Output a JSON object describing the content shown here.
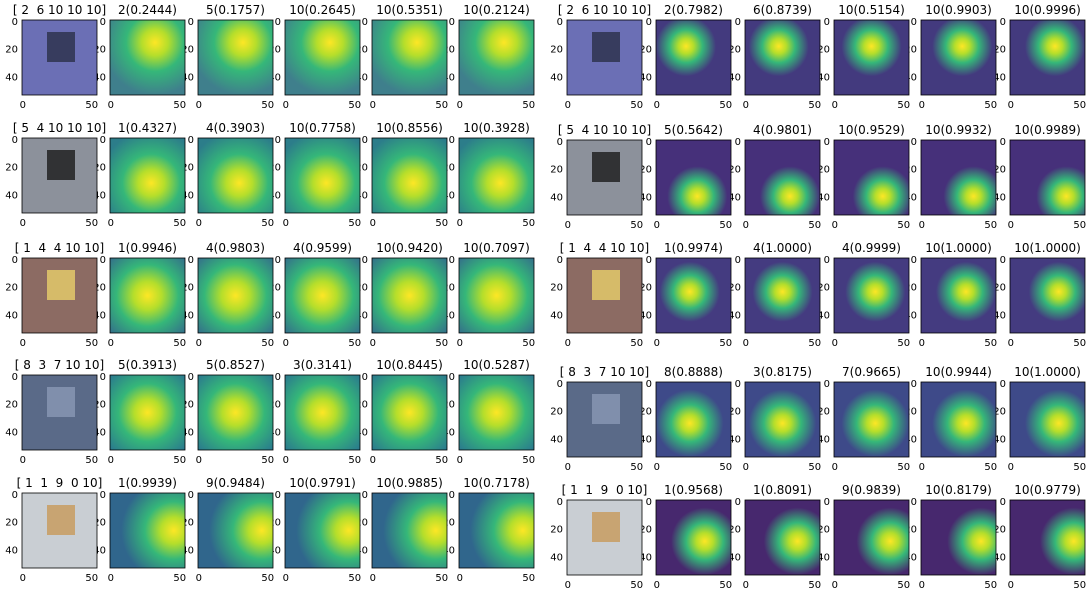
{
  "panels": [
    {
      "rows": [
        {
          "label": "[ 2  6 10 10 10]",
          "titles": [
            "2(0.2444)",
            "5(0.1757)",
            "10(0.2645)",
            "10(0.5351)",
            "10(0.2124)"
          ]
        },
        {
          "label": "[ 5  4 10 10 10]",
          "titles": [
            "1(0.4327)",
            "4(0.3903)",
            "10(0.7758)",
            "10(0.8556)",
            "10(0.3928)"
          ]
        },
        {
          "label": "[ 1  4  4 10 10]",
          "titles": [
            "1(0.9946)",
            "4(0.9803)",
            "4(0.9599)",
            "10(0.9420)",
            "10(0.7097)"
          ]
        },
        {
          "label": "[ 8  3  7 10 10]",
          "titles": [
            "5(0.3913)",
            "5(0.8527)",
            "3(0.3141)",
            "10(0.8445)",
            "10(0.5287)"
          ]
        },
        {
          "label": "[ 1  1  9  0 10]",
          "titles": [
            "1(0.9939)",
            "9(0.9484)",
            "10(0.9791)",
            "10(0.9885)",
            "10(0.7178)"
          ]
        }
      ]
    },
    {
      "rows": [
        {
          "label": "[ 2  6 10 10 10]",
          "titles": [
            "2(0.7982)",
            "6(0.8739)",
            "10(0.5154)",
            "10(0.9903)",
            "10(0.9996)"
          ]
        },
        {
          "label": "[ 5  4 10 10 10]",
          "titles": [
            "5(0.5642)",
            "4(0.9801)",
            "10(0.9529)",
            "10(0.9932)",
            "10(0.9989)"
          ]
        },
        {
          "label": "[ 1  4  4 10 10]",
          "titles": [
            "1(0.9974)",
            "4(1.0000)",
            "4(0.9999)",
            "10(1.0000)",
            "10(1.0000)"
          ]
        },
        {
          "label": "[ 8  3  7 10 10]",
          "titles": [
            "8(0.8888)",
            "3(0.8175)",
            "7(0.9665)",
            "10(0.9944)",
            "10(1.0000)"
          ]
        },
        {
          "label": "[ 1  1  9  0 10]",
          "titles": [
            "1(0.9568)",
            "1(0.8091)",
            "9(0.9839)",
            "10(0.8179)",
            "10(0.9779)"
          ]
        }
      ]
    }
  ],
  "axes": {
    "yticks": [
      "0",
      "20",
      "40"
    ],
    "xticks": [
      "0",
      "50"
    ]
  }
}
